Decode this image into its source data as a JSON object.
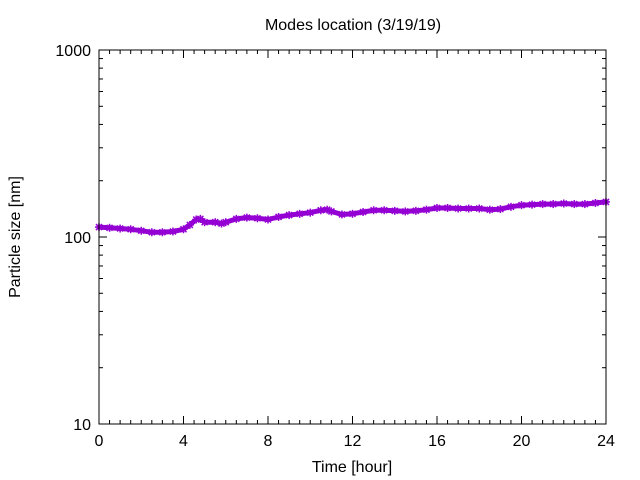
{
  "chart_data": {
    "type": "line",
    "title": "Modes location (3/19/19)",
    "xlabel": "Time [hour]",
    "ylabel": "Particle size [nm]",
    "xlim": [
      0,
      24
    ],
    "ylim": [
      10,
      1000
    ],
    "yscale": "log",
    "xticks": [
      0,
      4,
      8,
      12,
      16,
      20,
      24
    ],
    "yticks": [
      10,
      100,
      1000
    ],
    "grid": false,
    "legend": "none",
    "line_color": "#9400d3",
    "series": [
      {
        "x": [
          0,
          0.5,
          1,
          1.5,
          2,
          2.5,
          3,
          3.5,
          4,
          4.3,
          4.6,
          4.8,
          5,
          5.5,
          5.8,
          6,
          6.5,
          7,
          7.5,
          8,
          8.5,
          9,
          9.5,
          10,
          10.5,
          10.8,
          11,
          11.5,
          12,
          12.5,
          13,
          13.5,
          14,
          14.5,
          15,
          15.5,
          16,
          16.5,
          17,
          17.5,
          18,
          18.5,
          19,
          19.5,
          20,
          20.5,
          21,
          21.5,
          22,
          22.5,
          23,
          23.5,
          24
        ],
        "y": [
          113,
          112,
          111,
          110,
          108,
          106,
          106,
          107,
          110,
          116,
          124,
          125,
          120,
          120,
          118,
          120,
          125,
          127,
          126,
          124,
          128,
          131,
          133,
          135,
          139,
          140,
          137,
          132,
          133,
          136,
          139,
          139,
          138,
          137,
          138,
          140,
          143,
          143,
          142,
          142,
          142,
          140,
          141,
          145,
          148,
          149,
          150,
          150,
          151,
          150,
          150,
          152,
          154
        ]
      }
    ]
  }
}
